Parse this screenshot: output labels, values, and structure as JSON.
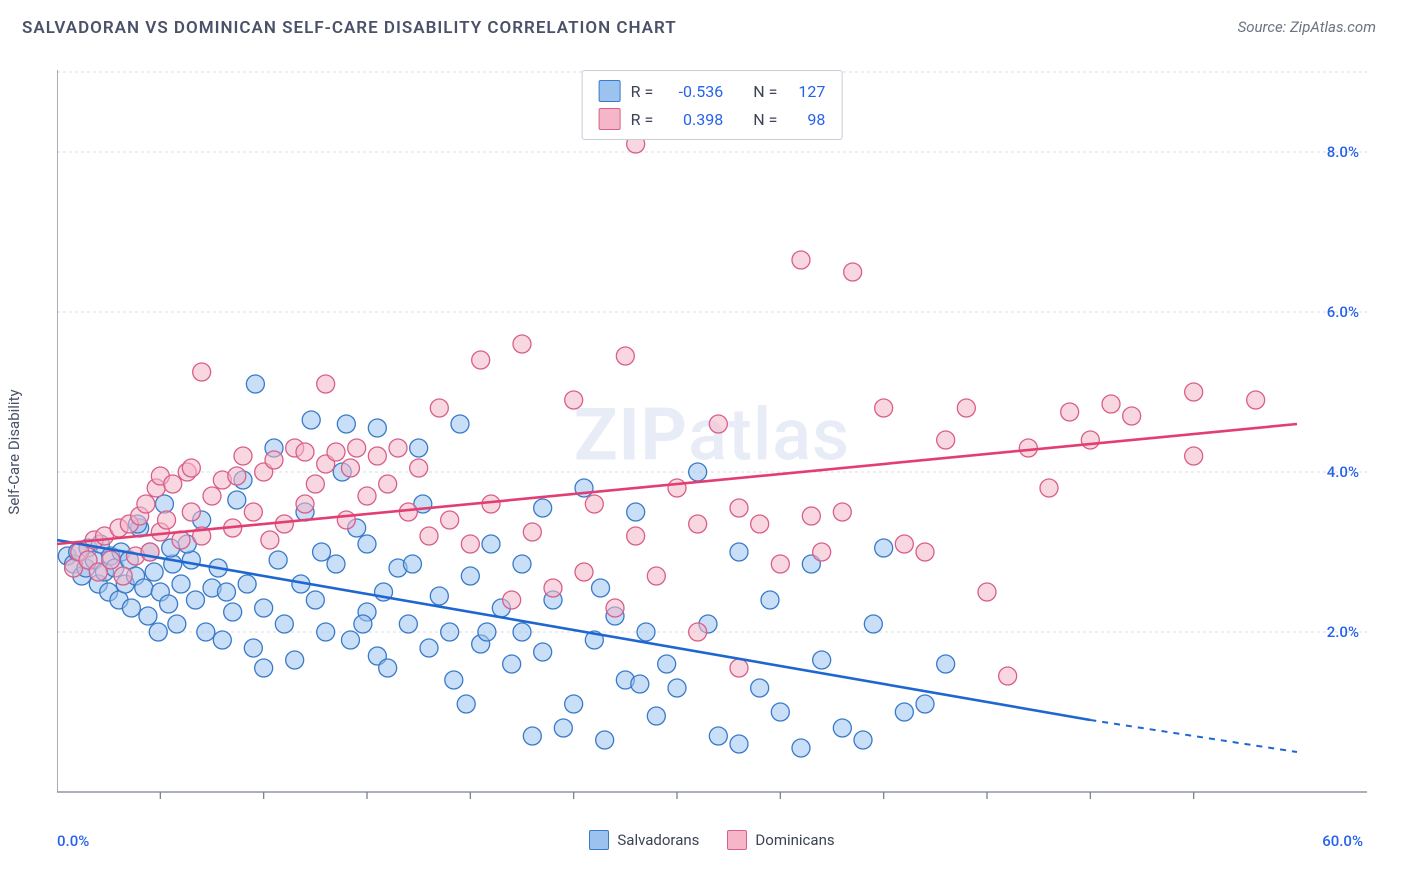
{
  "title": "SALVADORAN VS DOMINICAN SELF-CARE DISABILITY CORRELATION CHART",
  "source_label": "Source: ZipAtlas.com",
  "yaxis_label": "Self-Care Disability",
  "watermark": {
    "bold": "ZIP",
    "rest": "atlas"
  },
  "chart": {
    "type": "scatter",
    "background_color": "#ffffff",
    "grid_color": "#d8dbe2",
    "axis_color": "#7b8193",
    "tick_color": "#2563eb",
    "text_color": "#4a5168",
    "xlim": [
      0,
      60
    ],
    "ylim": [
      0,
      9
    ],
    "x_ticks_minor": [
      5,
      10,
      15,
      20,
      25,
      30,
      35,
      40,
      45,
      50,
      55
    ],
    "x_tick_labels": {
      "min": "0.0%",
      "max": "60.0%"
    },
    "y_ticks": [
      {
        "v": 2,
        "label": "2.0%"
      },
      {
        "v": 4,
        "label": "4.0%"
      },
      {
        "v": 6,
        "label": "6.0%"
      },
      {
        "v": 8,
        "label": "8.0%"
      }
    ],
    "marker_radius": 9,
    "marker_opacity": 0.55,
    "line_width": 2.6,
    "series": [
      {
        "name": "Salvadorans",
        "fill_color": "#9cc2f0",
        "stroke_color": "#3a7bc8",
        "line_color": "#1e66d0",
        "R": "-0.536",
        "N": "127",
        "trend": {
          "x1": 0,
          "y1": 3.15,
          "x2": 50,
          "y2": 0.9,
          "dash_from_x": 50,
          "x3": 60,
          "y3": 0.5
        },
        "points": [
          [
            0.5,
            2.95
          ],
          [
            0.8,
            2.85
          ],
          [
            1.0,
            3.0
          ],
          [
            1.2,
            2.7
          ],
          [
            1.4,
            2.8
          ],
          [
            1.5,
            3.05
          ],
          [
            1.8,
            2.9
          ],
          [
            2.0,
            2.6
          ],
          [
            2.1,
            3.1
          ],
          [
            2.3,
            2.75
          ],
          [
            2.5,
            2.5
          ],
          [
            2.6,
            2.95
          ],
          [
            2.8,
            2.8
          ],
          [
            3.0,
            2.4
          ],
          [
            3.1,
            3.0
          ],
          [
            3.3,
            2.6
          ],
          [
            3.5,
            2.9
          ],
          [
            3.6,
            2.3
          ],
          [
            3.8,
            2.7
          ],
          [
            4.0,
            3.3
          ],
          [
            4.2,
            2.55
          ],
          [
            4.4,
            2.2
          ],
          [
            4.5,
            3.0
          ],
          [
            4.7,
            2.75
          ],
          [
            5.0,
            2.5
          ],
          [
            5.2,
            3.6
          ],
          [
            5.4,
            2.35
          ],
          [
            5.6,
            2.85
          ],
          [
            5.8,
            2.1
          ],
          [
            6.0,
            2.6
          ],
          [
            6.5,
            2.9
          ],
          [
            6.7,
            2.4
          ],
          [
            7.0,
            3.4
          ],
          [
            7.2,
            2.0
          ],
          [
            7.5,
            2.55
          ],
          [
            7.8,
            2.8
          ],
          [
            8.0,
            1.9
          ],
          [
            8.2,
            2.5
          ],
          [
            8.5,
            2.25
          ],
          [
            9.0,
            3.9
          ],
          [
            9.2,
            2.6
          ],
          [
            9.5,
            1.8
          ],
          [
            9.6,
            5.1
          ],
          [
            10.0,
            2.3
          ],
          [
            10.5,
            4.3
          ],
          [
            10.7,
            2.9
          ],
          [
            11.0,
            2.1
          ],
          [
            11.5,
            1.65
          ],
          [
            11.8,
            2.6
          ],
          [
            12.0,
            3.5
          ],
          [
            12.3,
            4.65
          ],
          [
            12.5,
            2.4
          ],
          [
            13.0,
            2.0
          ],
          [
            13.5,
            2.85
          ],
          [
            14.0,
            4.6
          ],
          [
            14.2,
            1.9
          ],
          [
            14.5,
            3.3
          ],
          [
            15.0,
            2.25
          ],
          [
            15.5,
            4.55
          ],
          [
            15.5,
            1.7
          ],
          [
            15.8,
            2.5
          ],
          [
            16.0,
            1.55
          ],
          [
            16.5,
            2.8
          ],
          [
            17.0,
            2.1
          ],
          [
            17.5,
            4.3
          ],
          [
            17.7,
            3.6
          ],
          [
            18.0,
            1.8
          ],
          [
            18.5,
            2.45
          ],
          [
            19.0,
            2.0
          ],
          [
            19.2,
            1.4
          ],
          [
            19.5,
            4.6
          ],
          [
            20.0,
            2.7
          ],
          [
            20.5,
            1.85
          ],
          [
            21.0,
            3.1
          ],
          [
            21.5,
            2.3
          ],
          [
            22.0,
            1.6
          ],
          [
            22.5,
            2.0
          ],
          [
            23.0,
            0.7
          ],
          [
            23.5,
            1.75
          ],
          [
            24.0,
            2.4
          ],
          [
            24.5,
            0.8
          ],
          [
            25.0,
            1.1
          ],
          [
            25.5,
            3.8
          ],
          [
            26.0,
            1.9
          ],
          [
            26.5,
            0.65
          ],
          [
            27.0,
            2.2
          ],
          [
            27.5,
            1.4
          ],
          [
            28.0,
            3.5
          ],
          [
            28.5,
            2.0
          ],
          [
            29.0,
            0.95
          ],
          [
            29.5,
            1.6
          ],
          [
            30.0,
            1.3
          ],
          [
            31.0,
            4.0
          ],
          [
            32.0,
            0.7
          ],
          [
            33.0,
            0.6
          ],
          [
            34.0,
            1.3
          ],
          [
            35.0,
            1.0
          ],
          [
            36.0,
            0.55
          ],
          [
            37.0,
            1.65
          ],
          [
            38.0,
            0.8
          ],
          [
            39.0,
            0.65
          ],
          [
            39.5,
            2.1
          ],
          [
            40.0,
            3.05
          ],
          [
            41.0,
            1.0
          ],
          [
            42.0,
            1.1
          ],
          [
            43.0,
            1.6
          ],
          [
            33.0,
            3.0
          ],
          [
            10.0,
            1.55
          ],
          [
            6.3,
            3.1
          ],
          [
            13.8,
            4.0
          ],
          [
            23.5,
            3.55
          ],
          [
            26.3,
            2.55
          ],
          [
            8.7,
            3.65
          ],
          [
            4.9,
            2.0
          ],
          [
            15.0,
            3.1
          ],
          [
            5.5,
            3.05
          ],
          [
            3.9,
            3.35
          ],
          [
            12.8,
            3.0
          ],
          [
            19.8,
            1.1
          ],
          [
            28.2,
            1.35
          ],
          [
            31.5,
            2.1
          ],
          [
            34.5,
            2.4
          ],
          [
            36.5,
            2.85
          ],
          [
            14.8,
            2.1
          ],
          [
            17.2,
            2.85
          ],
          [
            22.5,
            2.85
          ],
          [
            20.8,
            2.0
          ]
        ]
      },
      {
        "name": "Dominicans",
        "fill_color": "#f4b6c8",
        "stroke_color": "#d85f8a",
        "line_color": "#e23e72",
        "R": "0.398",
        "N": "98",
        "trend": {
          "x1": 0,
          "y1": 3.1,
          "x2": 60,
          "y2": 4.6
        },
        "points": [
          [
            0.8,
            2.8
          ],
          [
            1.1,
            3.0
          ],
          [
            1.5,
            2.9
          ],
          [
            1.8,
            3.15
          ],
          [
            2.0,
            2.75
          ],
          [
            2.3,
            3.2
          ],
          [
            2.6,
            2.9
          ],
          [
            3.0,
            3.3
          ],
          [
            3.2,
            2.7
          ],
          [
            3.5,
            3.35
          ],
          [
            3.8,
            2.95
          ],
          [
            4.0,
            3.45
          ],
          [
            4.3,
            3.6
          ],
          [
            4.5,
            3.0
          ],
          [
            4.8,
            3.8
          ],
          [
            5.0,
            3.25
          ],
          [
            5.0,
            3.95
          ],
          [
            5.3,
            3.4
          ],
          [
            5.6,
            3.85
          ],
          [
            6.0,
            3.15
          ],
          [
            6.3,
            4.0
          ],
          [
            6.5,
            3.5
          ],
          [
            6.5,
            4.05
          ],
          [
            7.0,
            3.2
          ],
          [
            7.0,
            5.25
          ],
          [
            7.5,
            3.7
          ],
          [
            8.0,
            3.9
          ],
          [
            8.5,
            3.3
          ],
          [
            8.7,
            3.95
          ],
          [
            9.0,
            4.2
          ],
          [
            9.5,
            3.5
          ],
          [
            10.0,
            4.0
          ],
          [
            10.3,
            3.15
          ],
          [
            10.5,
            4.15
          ],
          [
            11.0,
            3.35
          ],
          [
            11.5,
            4.3
          ],
          [
            12.0,
            3.6
          ],
          [
            12.0,
            4.25
          ],
          [
            12.5,
            3.85
          ],
          [
            13.0,
            4.1
          ],
          [
            13.0,
            5.1
          ],
          [
            13.5,
            4.25
          ],
          [
            14.0,
            3.4
          ],
          [
            14.2,
            4.05
          ],
          [
            14.5,
            4.3
          ],
          [
            15.0,
            3.7
          ],
          [
            15.5,
            4.2
          ],
          [
            16.0,
            3.85
          ],
          [
            16.5,
            4.3
          ],
          [
            17.0,
            3.5
          ],
          [
            17.5,
            4.05
          ],
          [
            18.0,
            3.2
          ],
          [
            18.5,
            4.8
          ],
          [
            19.0,
            3.4
          ],
          [
            20.0,
            3.1
          ],
          [
            20.5,
            5.4
          ],
          [
            21.0,
            3.6
          ],
          [
            22.0,
            2.4
          ],
          [
            22.5,
            5.6
          ],
          [
            23.0,
            3.25
          ],
          [
            24.0,
            2.55
          ],
          [
            25.0,
            4.9
          ],
          [
            25.5,
            2.75
          ],
          [
            26.0,
            3.6
          ],
          [
            27.0,
            2.3
          ],
          [
            27.5,
            5.45
          ],
          [
            28.0,
            3.2
          ],
          [
            28.0,
            8.1
          ],
          [
            29.0,
            2.7
          ],
          [
            30.0,
            3.8
          ],
          [
            31.0,
            3.35
          ],
          [
            31.0,
            2.0
          ],
          [
            32.0,
            4.6
          ],
          [
            33.0,
            3.55
          ],
          [
            33.0,
            1.55
          ],
          [
            34.0,
            3.35
          ],
          [
            35.0,
            2.85
          ],
          [
            36.0,
            6.65
          ],
          [
            37.0,
            3.0
          ],
          [
            38.0,
            3.5
          ],
          [
            38.5,
            6.5
          ],
          [
            40.0,
            4.8
          ],
          [
            41.0,
            3.1
          ],
          [
            42.0,
            3.0
          ],
          [
            43.0,
            4.4
          ],
          [
            44.0,
            4.8
          ],
          [
            45.0,
            2.5
          ],
          [
            46.0,
            1.45
          ],
          [
            47.0,
            4.3
          ],
          [
            48.0,
            3.8
          ],
          [
            49.0,
            4.75
          ],
          [
            50.0,
            4.4
          ],
          [
            51.0,
            4.85
          ],
          [
            52.0,
            4.7
          ],
          [
            55.0,
            4.2
          ],
          [
            55.0,
            5.0
          ],
          [
            58.0,
            4.9
          ],
          [
            36.5,
            3.45
          ]
        ]
      }
    ],
    "bottom_legend": [
      {
        "label": "Salvadorans",
        "fill": "#9cc2f0",
        "stroke": "#3a7bc8"
      },
      {
        "label": "Dominicans",
        "fill": "#f4b6c8",
        "stroke": "#d85f8a"
      }
    ]
  }
}
